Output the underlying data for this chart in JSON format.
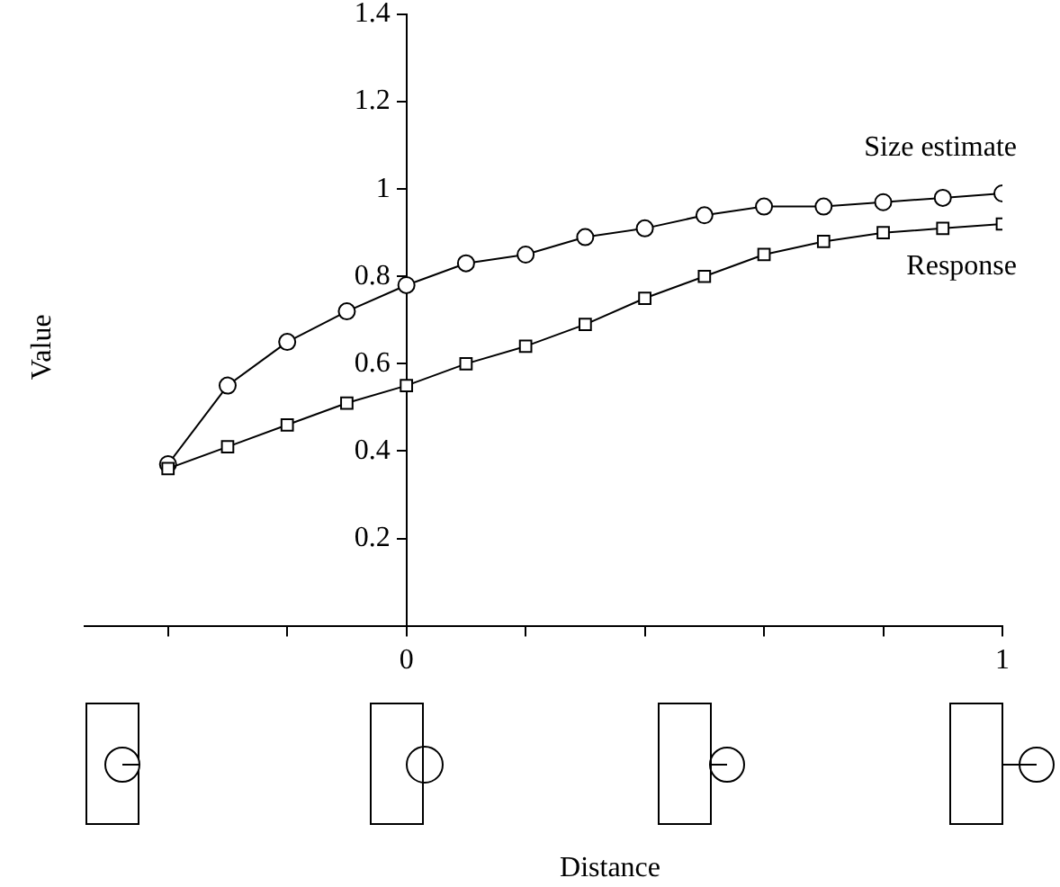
{
  "chart_data": {
    "type": "line",
    "annotations": [
      "Distance"
    ],
    "ylabel": "Value",
    "x": [
      -0.4,
      -0.3,
      -0.2,
      -0.1,
      0,
      0.1,
      0.2,
      0.3,
      0.4,
      0.5,
      0.6,
      0.7,
      0.8,
      0.9,
      1
    ],
    "xlim": [
      -0.54,
      1
    ],
    "xticks": [
      {
        "value": -0.4,
        "label": null
      },
      {
        "value": -0.2,
        "label": null
      },
      0,
      {
        "value": 0.2,
        "label": null
      },
      {
        "value": 0.4,
        "label": null
      },
      {
        "value": 0.6,
        "label": null
      },
      {
        "value": 0.8,
        "label": null
      },
      1
    ],
    "ylim": [
      0,
      1.4
    ],
    "yticks": [
      0.2,
      0.4,
      0.6,
      0.8,
      1,
      1.2,
      1.4
    ],
    "grid": false,
    "legend": false,
    "line_style": "solid",
    "series": [
      {
        "name": "Size estimate",
        "color": "#000000",
        "marker": "circle",
        "values": [
          0.37,
          0.55,
          0.65,
          0.72,
          0.78,
          0.83,
          0.85,
          0.89,
          0.91,
          0.94,
          0.96,
          0.96,
          0.97,
          0.98,
          0.99
        ]
      },
      {
        "name": "Response",
        "color": "#000000",
        "marker": "square",
        "values": [
          0.36,
          0.41,
          0.46,
          0.51,
          0.55,
          0.6,
          0.64,
          0.69,
          0.75,
          0.8,
          0.85,
          0.88,
          0.9,
          0.91,
          0.92
        ]
      }
    ]
  }
}
